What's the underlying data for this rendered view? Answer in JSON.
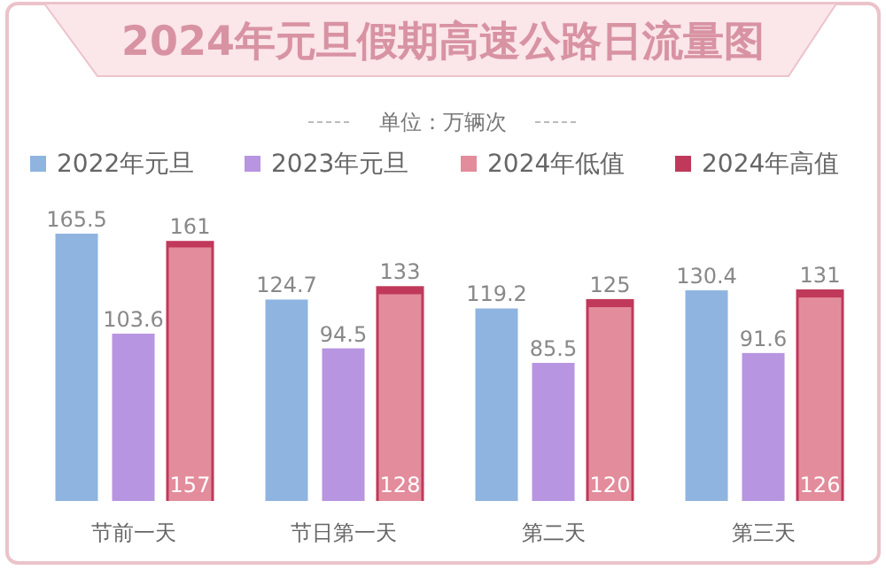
{
  "chart_data": {
    "type": "bar",
    "title": "2024年元旦假期高速公路日流量图",
    "subtitle": "单位：万辆次",
    "categories": [
      "节前一天",
      "节日第一天",
      "第二天",
      "第三天"
    ],
    "legend": "top",
    "data_labels": true,
    "series": [
      {
        "name": "2022年元旦",
        "color": "#8fb4e0",
        "values": [
          165.5,
          124.7,
          119.2,
          130.4
        ]
      },
      {
        "name": "2023年元旦",
        "color": "#b795e0",
        "values": [
          103.6,
          94.5,
          85.5,
          91.6
        ]
      },
      {
        "name": "2024年低值",
        "color": "#e38c9c",
        "values": [
          157,
          128,
          120,
          126
        ]
      },
      {
        "name": "2024年高值",
        "color": "#c0395a",
        "values": [
          161,
          133,
          125,
          131
        ]
      }
    ]
  }
}
